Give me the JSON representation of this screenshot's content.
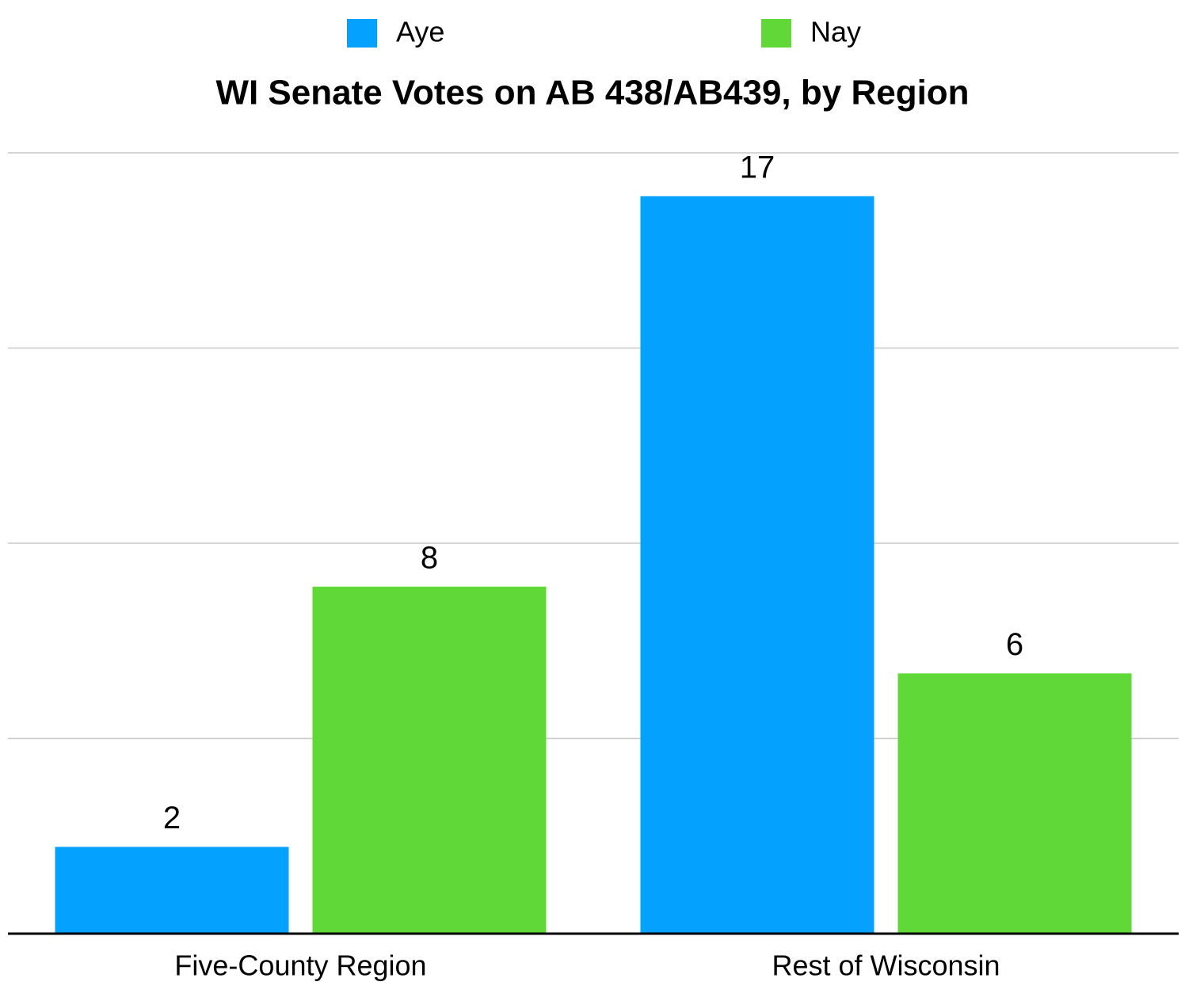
{
  "chart_data": {
    "type": "bar",
    "title": "WI Senate Votes on AB 438/AB439, by Region",
    "categories": [
      "Five-County Region",
      "Rest of Wisconsin"
    ],
    "series": [
      {
        "name": "Aye",
        "color": "#04a1ff",
        "values": [
          2,
          17
        ]
      },
      {
        "name": "Nay",
        "color": "#60d838",
        "values": [
          8,
          6
        ]
      }
    ],
    "ylim": [
      0,
      18
    ],
    "yticks": [
      0,
      4.5,
      9,
      13.5,
      18
    ],
    "grid": true,
    "legend": "top"
  }
}
